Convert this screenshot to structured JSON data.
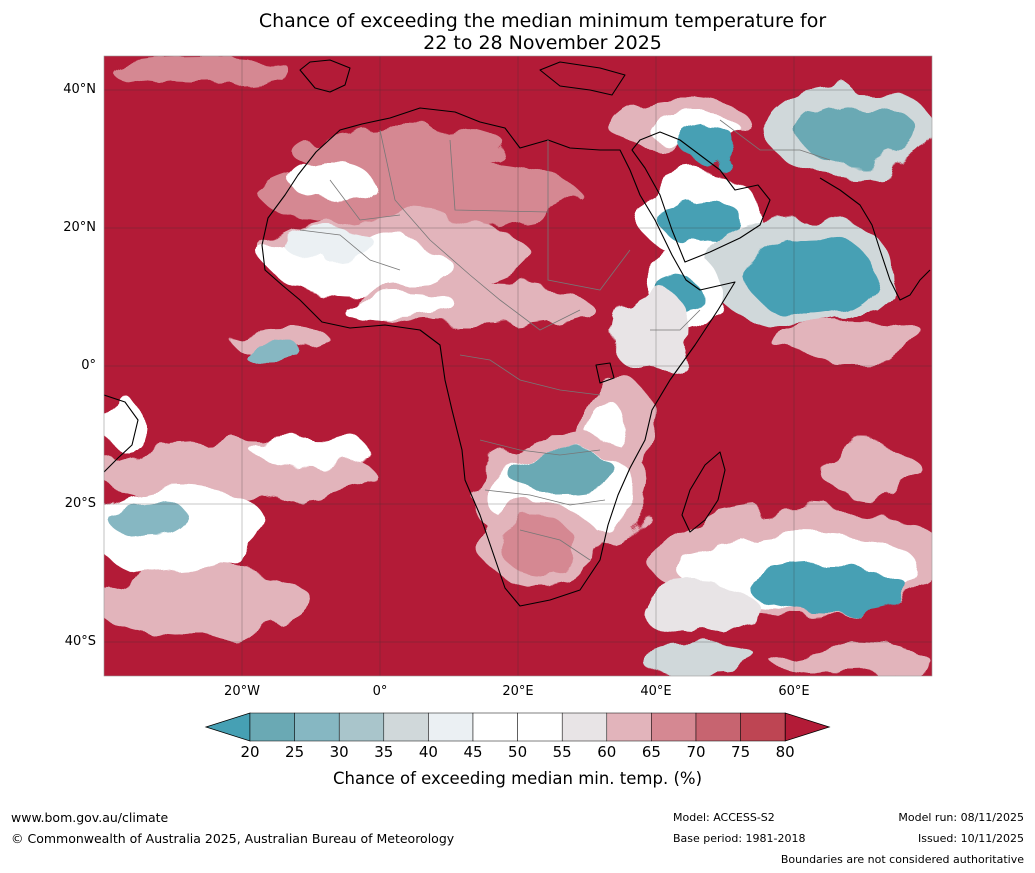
{
  "title_line1": "Chance of exceeding the median minimum temperature for",
  "title_line2": "22 to 28 November 2025",
  "map": {
    "lat_labels": [
      "40°N",
      "20°N",
      "0°",
      "20°S",
      "40°S"
    ],
    "lon_labels": [
      "20°W",
      "0°",
      "20°E",
      "40°E",
      "60°E"
    ]
  },
  "colorbar": {
    "ticks": [
      "20",
      "25",
      "30",
      "35",
      "40",
      "45",
      "50",
      "55",
      "60",
      "65",
      "70",
      "75",
      "80"
    ],
    "colors": [
      "#46a0b4",
      "#6aa9b4",
      "#86b7c2",
      "#a9c5cb",
      "#d0d8da",
      "#ebf0f3",
      "#ffffff",
      "#ffffff",
      "#e8e4e6",
      "#e2b4bb",
      "#d58892",
      "#c76470",
      "#be4553",
      "#b31b37"
    ],
    "label": "Chance of exceeding median min. temp. (%)"
  },
  "footer": {
    "website": "www.bom.gov.au/climate",
    "copyright": "© Commonwealth of Australia 2025, Australian Bureau of Meteorology",
    "model": "Model: ACCESS-S2",
    "base_period": "Base period: 1981-2018",
    "model_run": "Model run: 08/11/2025",
    "issued": "Issued: 10/11/2025",
    "disclaimer": "Boundaries are not considered authoritative"
  }
}
